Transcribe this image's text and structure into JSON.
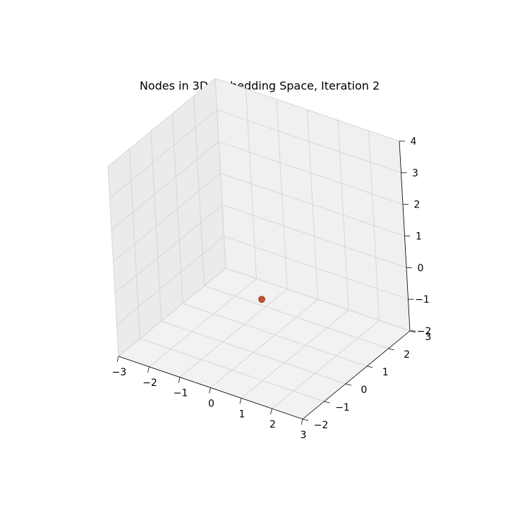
{
  "chart_data": {
    "type": "scatter",
    "title": "Nodes in 3D Embedding Space, Iteration 2",
    "projection": "3d",
    "xlabel": "",
    "ylabel": "",
    "zlabel": "",
    "xlim": [
      -3,
      3
    ],
    "ylim": [
      -2,
      3
    ],
    "zlim": [
      -2,
      4
    ],
    "xticks": [
      "−3",
      "−2",
      "−1",
      "0",
      "1",
      "2",
      "3"
    ],
    "yticks": [
      "−2",
      "−1",
      "0",
      "1",
      "2",
      "3"
    ],
    "zticks": [
      "−2",
      "−1",
      "0",
      "1",
      "2",
      "3",
      "4"
    ],
    "grid": true,
    "points": [
      {
        "x": 0.0,
        "y": 0.5,
        "z": -0.6,
        "color": "#c0532c"
      }
    ]
  }
}
